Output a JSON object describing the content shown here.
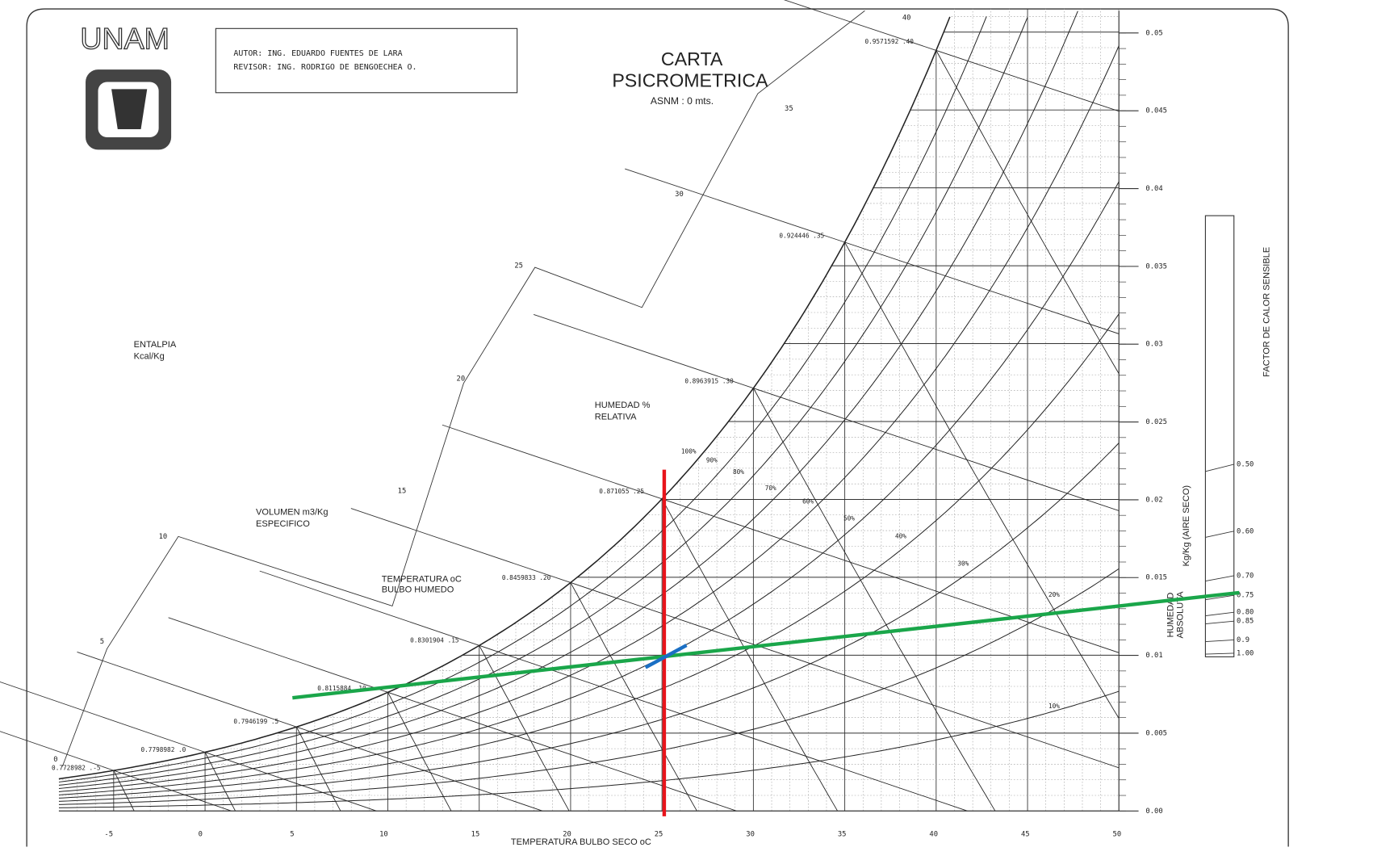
{
  "header": {
    "logo": "UNAM",
    "author": "AUTOR: ING. EDUARDO FUENTES DE LARA",
    "reviewer": "REVISOR: ING. RODRIGO DE BENGOECHEA O."
  },
  "title": {
    "line1": "CARTA",
    "line2": "PSICROMETRICA",
    "altitude": "ASNM : 0 mts."
  },
  "labels": {
    "enthalpy": "ENTALPIA",
    "enthalpy_unit": "Kcal/Kg",
    "volume": "VOLUMEN m3/Kg",
    "volume_sub": "ESPECIFICO",
    "wet_bulb": "TEMPERATURA oC",
    "wet_bulb_sub": "BULBO HUMEDO",
    "rh": "HUMEDAD %",
    "rh_sub": "RELATIVA",
    "shf": "FACTOR DE CALOR SENSIBLE",
    "humidity": "HUMEDAD",
    "humidity_sub": "ABSOLUTA",
    "humidity_unit": "Kg/Kg (AIRE SECO)",
    "x_axis": "TEMPERATURA BULBO SECO oC"
  },
  "dry_bulb_ticks": [
    "-5",
    "0",
    "5",
    "10",
    "15",
    "20",
    "25",
    "30",
    "35",
    "40",
    "45",
    "50"
  ],
  "humidity_ticks": [
    "0.00",
    "0.005",
    "0.01",
    "0.015",
    "0.02",
    "0.025",
    "0.03",
    "0.035",
    "0.04",
    "0.045",
    "0.05"
  ],
  "enthalpy_ticks": [
    "0",
    "5",
    "10",
    "15",
    "20",
    "25",
    "30",
    "35",
    "40"
  ],
  "volume_labels": [
    "0.7728982 .-5",
    "0.7798982 .0",
    "0.7946199 .5",
    "0.8115884 .10",
    "0.8301904 .15",
    "0.8459833 .20",
    "0.871055 .25",
    "0.8963915 .30",
    "0.924446 .35",
    "0.9571592 .40"
  ],
  "rh_labels": [
    "100%",
    "90%",
    "80%",
    "70%",
    "60%",
    "50%",
    "40%",
    "30%",
    "20%",
    "10%"
  ],
  "shf_ticks": [
    "0.50",
    "0.60",
    "0.70",
    "0.75",
    "0.80",
    "0.85",
    "0.9",
    "1.00"
  ]
}
